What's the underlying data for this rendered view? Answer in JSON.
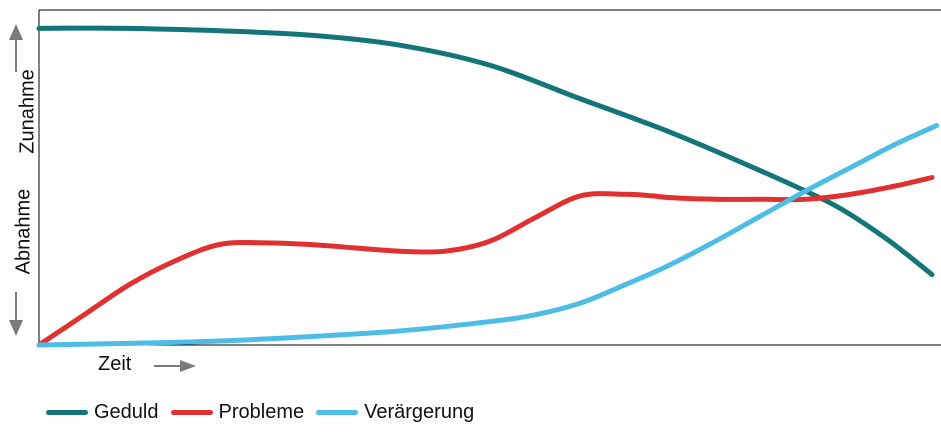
{
  "chart_data": {
    "type": "line",
    "title": "",
    "xlabel": "Zeit",
    "ylabel_up": "Zunahme",
    "ylabel_down": "Abnahme",
    "xlim": [
      0,
      100
    ],
    "ylim": [
      0,
      100
    ],
    "grid": false,
    "legend_position": "bottom-left",
    "series": [
      {
        "name": "Geduld",
        "color": "#137579",
        "x": [
          0,
          5,
          10,
          20,
          30,
          40,
          50,
          60,
          70,
          80,
          88,
          93,
          96,
          99
        ],
        "y": [
          94.5,
          94.6,
          94.5,
          93.8,
          92.5,
          89.5,
          83.5,
          73.5,
          63.5,
          52,
          42,
          33.5,
          27.5,
          21
        ]
      },
      {
        "name": "Probleme",
        "color": "#e03030",
        "x": [
          0,
          5,
          10,
          15,
          20,
          25,
          30,
          35,
          40,
          45,
          50,
          55,
          60,
          65,
          68,
          70,
          75,
          80,
          85,
          90,
          95,
          99
        ],
        "y": [
          0,
          9,
          18,
          25,
          30,
          30.5,
          30,
          29,
          28,
          28,
          31,
          38,
          44.5,
          45,
          44.5,
          44,
          43.5,
          43.5,
          43.5,
          45,
          47.5,
          50
        ]
      },
      {
        "name": "Verärgerung",
        "color": "#4dbde6",
        "x": [
          0,
          10,
          20,
          30,
          40,
          50,
          55,
          60,
          65,
          70,
          75,
          80,
          85,
          90,
          95,
          99.5
        ],
        "y": [
          0,
          0.5,
          1.2,
          2.5,
          4.2,
          7,
          9,
          12.5,
          18,
          24,
          31,
          38.5,
          46,
          53,
          60,
          65.5
        ]
      }
    ]
  }
}
